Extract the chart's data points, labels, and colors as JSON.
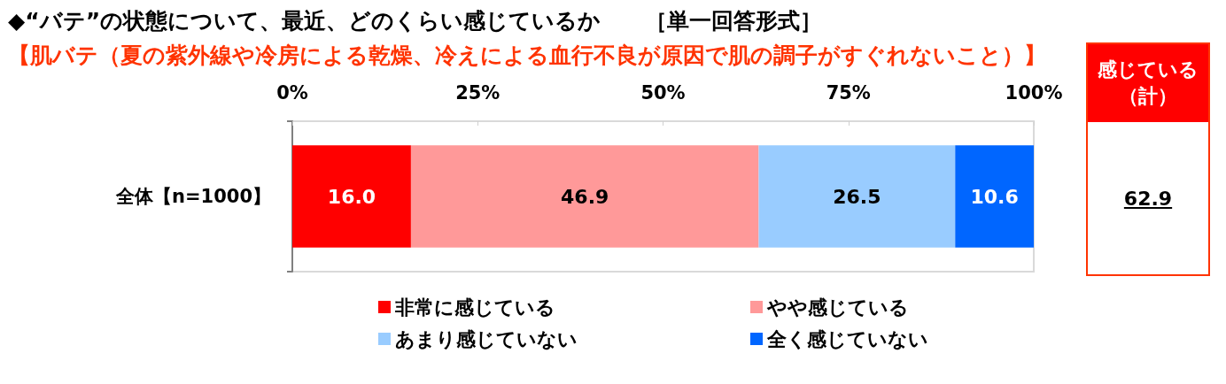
{
  "chart_data": {
    "type": "bar",
    "title": "◆“バテ”の状態について、最近、どのくらい感じているか　　［単一回答形式］",
    "subtitle": "【肌バテ（夏の紫外線や冷房による乾燥、冷えによる血行不良が原因で肌の調子がすぐれないこと）】",
    "categories": [
      "全体【n=1000】"
    ],
    "orientation": "horizontal",
    "stacked": true,
    "series": [
      {
        "name": "非常に感じている",
        "color": "#ff0000",
        "values": [
          16.0
        ],
        "value_labels": [
          "16.0"
        ]
      },
      {
        "name": "やや感じている",
        "color": "#ff9999",
        "values": [
          46.9
        ],
        "value_labels": [
          "46.9"
        ]
      },
      {
        "name": "あまり感じていない",
        "color": "#99ccff",
        "values": [
          26.5
        ],
        "value_labels": [
          "26.5"
        ]
      },
      {
        "name": "全く感じていない",
        "color": "#0066ff",
        "values": [
          10.6
        ],
        "value_labels": [
          "10.6"
        ]
      }
    ],
    "xlim": [
      0,
      100
    ],
    "xticks": [
      {
        "value": 0,
        "label": "0%"
      },
      {
        "value": 25,
        "label": "25%"
      },
      {
        "value": 50,
        "label": "50%"
      },
      {
        "value": 75,
        "label": "75%"
      },
      {
        "value": 100,
        "label": "100%"
      }
    ],
    "legend": "bottom",
    "annotations": [
      "感じている（計）",
      "62.9"
    ]
  }
}
